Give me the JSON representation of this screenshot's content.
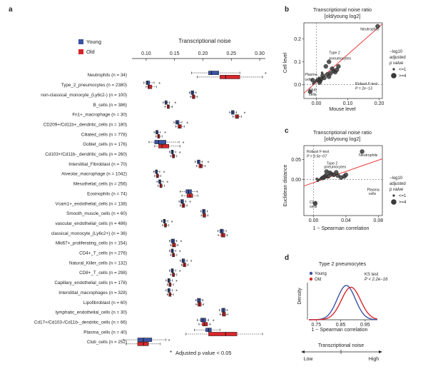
{
  "panel_labels": {
    "a": "a",
    "b": "b",
    "c": "c",
    "d": "d"
  },
  "colors": {
    "young": "#3b52a4",
    "old": "#d7262b",
    "line": "#e8403f",
    "point": "#3a3a3a"
  },
  "chart_data": [
    {
      "id": "a",
      "type": "boxplot",
      "title": "Transcriptional noise",
      "xlim": [
        0.075,
        0.31
      ],
      "xticks": [
        "0.10",
        "0.15",
        "0.20",
        "0.25",
        "0.30"
      ],
      "xtick_values": [
        0.1,
        0.15,
        0.2,
        0.25,
        0.3
      ],
      "legend": [
        {
          "key": "young",
          "label": "Young"
        },
        {
          "key": "old",
          "label": "Old"
        }
      ],
      "footnote": "Adjusted p value < 0.05",
      "footnote_star": "*",
      "rows": [
        {
          "label": "Neutrophils (n = 34)",
          "sig": true,
          "young": [
            0.18,
            0.21,
            0.215,
            0.228,
            0.265
          ],
          "old": [
            0.19,
            0.23,
            0.24,
            0.265,
            0.305
          ]
        },
        {
          "label": "Type_2_pneumocytes (n = 2380)",
          "sig": true,
          "young": [
            0.096,
            0.1,
            0.102,
            0.106,
            0.114
          ],
          "old": [
            0.1,
            0.103,
            0.105,
            0.11,
            0.118
          ]
        },
        {
          "label": "non-classical_monocyte_(Ly6c2-) (n = 100)",
          "sig": false,
          "young": [
            0.176,
            0.179,
            0.181,
            0.184,
            0.188
          ],
          "old": [
            0.178,
            0.181,
            0.184,
            0.186,
            0.19
          ]
        },
        {
          "label": "B_cells (n = 386)",
          "sig": true,
          "young": [
            0.13,
            0.133,
            0.135,
            0.137,
            0.141
          ],
          "old": [
            0.133,
            0.137,
            0.139,
            0.141,
            0.146
          ]
        },
        {
          "label": "Fn1+_macrophage (n = 30)",
          "sig": true,
          "young": [
            0.247,
            0.25,
            0.253,
            0.255,
            0.259
          ],
          "old": [
            0.253,
            0.257,
            0.26,
            0.263,
            0.268
          ]
        },
        {
          "label": "CD209+/Cd11b+_dendritic_cells (n = 180)",
          "sig": true,
          "young": [
            0.149,
            0.152,
            0.155,
            0.158,
            0.163
          ],
          "old": [
            0.152,
            0.156,
            0.159,
            0.162,
            0.167
          ]
        },
        {
          "label": "Ciliated_cells (n = 778)",
          "sig": true,
          "young": [
            0.114,
            0.117,
            0.119,
            0.121,
            0.125
          ],
          "old": [
            0.117,
            0.12,
            0.122,
            0.124,
            0.128
          ]
        },
        {
          "label": "Goblet_cells (n = 176)",
          "sig": true,
          "young": [
            0.105,
            0.115,
            0.122,
            0.135,
            0.158
          ],
          "old": [
            0.115,
            0.122,
            0.128,
            0.14,
            0.16
          ]
        },
        {
          "label": "Cd103+/Cd11b-_dendritic_cells (n = 260)",
          "sig": true,
          "young": [
            0.141,
            0.144,
            0.146,
            0.148,
            0.152
          ],
          "old": [
            0.143,
            0.146,
            0.148,
            0.15,
            0.154
          ]
        },
        {
          "label": "Interstitial_Fibroblast (n = 70)",
          "sig": true,
          "young": [
            0.186,
            0.19,
            0.192,
            0.195,
            0.199
          ],
          "old": [
            0.189,
            0.193,
            0.196,
            0.199,
            0.204
          ]
        },
        {
          "label": "Alveolar_macrophage (n = 1042)",
          "sig": true,
          "young": [
            0.113,
            0.116,
            0.118,
            0.12,
            0.124
          ],
          "old": [
            0.115,
            0.118,
            0.12,
            0.122,
            0.126
          ]
        },
        {
          "label": "Mesothelial_cells (n = 256)",
          "sig": true,
          "young": [
            0.119,
            0.122,
            0.124,
            0.126,
            0.13
          ],
          "old": [
            0.121,
            0.124,
            0.126,
            0.128,
            0.132
          ]
        },
        {
          "label": "Eosinophils (n = 74)",
          "sig": false,
          "young": [
            0.16,
            0.17,
            0.175,
            0.18,
            0.19
          ],
          "old": [
            0.163,
            0.172,
            0.177,
            0.182,
            0.191
          ]
        },
        {
          "label": "Vcam1+_endothelial_cells (n = 138)",
          "sig": true,
          "young": [
            0.158,
            0.161,
            0.163,
            0.166,
            0.17
          ],
          "old": [
            0.16,
            0.163,
            0.166,
            0.168,
            0.172
          ]
        },
        {
          "label": "Smooth_muscle_cells (n = 60)",
          "sig": false,
          "young": [
            0.196,
            0.199,
            0.201,
            0.204,
            0.208
          ],
          "old": [
            0.197,
            0.2,
            0.202,
            0.205,
            0.209
          ]
        },
        {
          "label": "vascular_endothelial_cells (n = 486)",
          "sig": true,
          "young": [
            0.127,
            0.13,
            0.132,
            0.134,
            0.138
          ],
          "old": [
            0.129,
            0.132,
            0.134,
            0.136,
            0.14
          ]
        },
        {
          "label": "classical_monocyte_(Ly6c2+) (n = 36)",
          "sig": false,
          "young": [
            0.226,
            0.23,
            0.233,
            0.236,
            0.241
          ],
          "old": [
            0.227,
            0.232,
            0.235,
            0.239,
            0.243
          ]
        },
        {
          "label": "Mki67+_proliferating_cells (n = 154)",
          "sig": true,
          "young": [
            0.141,
            0.144,
            0.147,
            0.15,
            0.154
          ],
          "old": [
            0.143,
            0.146,
            0.149,
            0.152,
            0.156
          ]
        },
        {
          "label": "CD4+_T_cells (n = 276)",
          "sig": true,
          "young": [
            0.141,
            0.144,
            0.146,
            0.148,
            0.152
          ],
          "old": [
            0.143,
            0.146,
            0.148,
            0.15,
            0.154
          ]
        },
        {
          "label": "Natural_Killer_cells (n = 132)",
          "sig": true,
          "young": [
            0.16,
            0.163,
            0.165,
            0.168,
            0.172
          ],
          "old": [
            0.162,
            0.165,
            0.167,
            0.17,
            0.174
          ]
        },
        {
          "label": "CD8+_T_cells (n = 298)",
          "sig": true,
          "young": [
            0.141,
            0.144,
            0.146,
            0.148,
            0.152
          ],
          "old": [
            0.143,
            0.146,
            0.148,
            0.15,
            0.154
          ]
        },
        {
          "label": "Capillary_endothelial_cells (n = 178)",
          "sig": true,
          "young": [
            0.135,
            0.138,
            0.14,
            0.142,
            0.146
          ],
          "old": [
            0.137,
            0.14,
            0.142,
            0.144,
            0.148
          ]
        },
        {
          "label": "Interstitial_macrophages (n = 328)",
          "sig": true,
          "young": [
            0.135,
            0.138,
            0.14,
            0.142,
            0.146
          ],
          "old": [
            0.137,
            0.14,
            0.142,
            0.144,
            0.148
          ]
        },
        {
          "label": "Lipofibroblast (n = 60)",
          "sig": false,
          "young": [
            0.187,
            0.19,
            0.193,
            0.196,
            0.2
          ],
          "old": [
            0.188,
            0.191,
            0.194,
            0.197,
            0.201
          ]
        },
        {
          "label": "lymphatic_endothelial_cells (n = 30)",
          "sig": false,
          "young": [
            0.229,
            0.233,
            0.236,
            0.239,
            0.243
          ],
          "old": [
            0.23,
            0.234,
            0.237,
            0.24,
            0.244
          ]
        },
        {
          "label": "Cd17+/Cd103-/Cd11b-_dendritic_cells (n = 66)",
          "sig": true,
          "young": [
            0.19,
            0.196,
            0.2,
            0.205,
            0.21
          ],
          "old": [
            0.193,
            0.199,
            0.203,
            0.208,
            0.213
          ]
        },
        {
          "label": "Plasma_cells (n = 40)",
          "sig": false,
          "young": [
            0.185,
            0.205,
            0.21,
            0.215,
            0.23
          ],
          "old": [
            0.17,
            0.21,
            0.24,
            0.26,
            0.305
          ]
        },
        {
          "label": "Club_cells (n = 252)",
          "sig": true,
          "young": [
            0.06,
            0.085,
            0.095,
            0.11,
            0.135
          ],
          "old": [
            0.065,
            0.085,
            0.095,
            0.104,
            0.125
          ]
        }
      ]
    },
    {
      "id": "b",
      "type": "scatter",
      "title": "Transcriptional noise ratio",
      "subtitle": "[old/young log2]",
      "xlabel": "Mouse level",
      "ylabel": "Cell level",
      "xlim": [
        -0.04,
        0.21
      ],
      "ylim": [
        -0.06,
        0.27
      ],
      "xticks": [
        "0.00",
        "0.10",
        "0.20"
      ],
      "xtick_values": [
        0.0,
        0.1,
        0.2
      ],
      "yticks": [
        "0.0",
        "0.1",
        "0.2"
      ],
      "ytick_values": [
        0.0,
        0.1,
        0.2
      ],
      "annotations": [
        {
          "text": "Neutrophils",
          "x": 0.14,
          "y": 0.237
        },
        {
          "text": "Type 2",
          "x": 0.04,
          "y": 0.135
        },
        {
          "text": "pneumocytes",
          "x": 0.04,
          "y": 0.11
        },
        {
          "text": "Plasma",
          "x": -0.037,
          "y": 0.04
        },
        {
          "text": "cells",
          "x": -0.037,
          "y": 0.018
        },
        {
          "text": "Club",
          "x": -0.024,
          "y": -0.028
        },
        {
          "text": "cells",
          "x": -0.024,
          "y": -0.048
        }
      ],
      "stat_text": [
        "Robust F-test",
        "P = 2e−13"
      ],
      "legend_title": [
        "−log10",
        "adjusted",
        "p value"
      ],
      "legend_items": [
        "<=1",
        ">=4"
      ],
      "fit": {
        "x": [
          -0.04,
          0.21
        ],
        "y": [
          -0.037,
          0.265
        ]
      },
      "points": [
        {
          "x": 0.195,
          "y": 0.255,
          "s": 2
        },
        {
          "x": 0.04,
          "y": 0.1,
          "s": 2
        },
        {
          "x": 0.03,
          "y": 0.08,
          "s": 2
        },
        {
          "x": 0.05,
          "y": 0.07,
          "s": 2
        },
        {
          "x": 0.055,
          "y": 0.06,
          "s": 2
        },
        {
          "x": 0.06,
          "y": 0.055,
          "s": 2
        },
        {
          "x": 0.065,
          "y": 0.065,
          "s": 2
        },
        {
          "x": 0.045,
          "y": 0.05,
          "s": 2
        },
        {
          "x": 0.035,
          "y": 0.045,
          "s": 2
        },
        {
          "x": 0.04,
          "y": 0.035,
          "s": 2
        },
        {
          "x": 0.025,
          "y": 0.03,
          "s": 2
        },
        {
          "x": 0.02,
          "y": 0.04,
          "s": 2
        },
        {
          "x": 0.015,
          "y": 0.025,
          "s": 2
        },
        {
          "x": 0.012,
          "y": 0.018,
          "s": 2
        },
        {
          "x": 0.01,
          "y": 0.01,
          "s": 2
        },
        {
          "x": 0.005,
          "y": 0.02,
          "s": 2
        },
        {
          "x": 0.008,
          "y": 0.03,
          "s": 1
        },
        {
          "x": 0.0,
          "y": 0.02,
          "s": 1
        },
        {
          "x": -0.005,
          "y": 0.012,
          "s": 1
        },
        {
          "x": 0.018,
          "y": 0.052,
          "s": 1
        },
        {
          "x": 0.07,
          "y": 0.08,
          "s": 2
        },
        {
          "x": -0.01,
          "y": 0.005,
          "s": 1
        },
        {
          "x": -0.012,
          "y": 0.02,
          "s": 2
        },
        {
          "x": -0.02,
          "y": -0.03,
          "s": 2
        }
      ]
    },
    {
      "id": "c",
      "type": "scatter",
      "title": "Transcriptional noise ratio",
      "subtitle": "[old/young log2]",
      "xlabel": "1 − Spearman correlation",
      "ylabel": "Euclidean distance",
      "xlim": [
        -0.012,
        0.085
      ],
      "ylim": [
        -0.09,
        0.085
      ],
      "xticks": [
        "0.00",
        "0.04",
        "0.08"
      ],
      "xtick_values": [
        0.0,
        0.04,
        0.08
      ],
      "yticks": [
        "0.00",
        "0.05"
      ],
      "ytick_values": [
        0.0,
        0.05
      ],
      "annotations": [
        {
          "text": "Neutrophils",
          "x": 0.056,
          "y": 0.058
        },
        {
          "text": "Type 2",
          "x": 0.016,
          "y": 0.038
        },
        {
          "text": "pneumocytes",
          "x": 0.013,
          "y": 0.029
        },
        {
          "text": "Plasma",
          "x": 0.066,
          "y": -0.028
        },
        {
          "text": "cells",
          "x": 0.068,
          "y": -0.038
        },
        {
          "text": "Club",
          "x": -0.005,
          "y": -0.06
        },
        {
          "text": "cells",
          "x": -0.005,
          "y": -0.07
        }
      ],
      "stat_text": [
        "Robust F-test",
        "P = 9.5e−07"
      ],
      "legend_title": [
        "−log10",
        "adjusted",
        "p value"
      ],
      "legend_items": [
        "<=1",
        ">=4"
      ],
      "fit": {
        "x": [
          -0.012,
          0.085
        ],
        "y": [
          -0.016,
          0.052
        ]
      },
      "points": [
        {
          "x": 0.06,
          "y": 0.07,
          "s": 2
        },
        {
          "x": 0.038,
          "y": 0.008,
          "s": 2
        },
        {
          "x": 0.034,
          "y": 0.005,
          "s": 2
        },
        {
          "x": 0.03,
          "y": 0.01,
          "s": 2
        },
        {
          "x": 0.025,
          "y": 0.012,
          "s": 2
        },
        {
          "x": 0.022,
          "y": 0.014,
          "s": 2
        },
        {
          "x": 0.02,
          "y": 0.017,
          "s": 2
        },
        {
          "x": 0.018,
          "y": 0.008,
          "s": 2
        },
        {
          "x": 0.015,
          "y": 0.01,
          "s": 2
        },
        {
          "x": 0.013,
          "y": 0.006,
          "s": 2
        },
        {
          "x": 0.011,
          "y": 0.004,
          "s": 2
        },
        {
          "x": 0.009,
          "y": 0.003,
          "s": 1
        },
        {
          "x": 0.007,
          "y": 0.0,
          "s": 1
        },
        {
          "x": 0.005,
          "y": -0.003,
          "s": 1
        },
        {
          "x": 0.004,
          "y": 0.002,
          "s": 1
        },
        {
          "x": 0.016,
          "y": 0.02,
          "s": 2
        },
        {
          "x": 0.028,
          "y": 0.018,
          "s": 2
        },
        {
          "x": 0.04,
          "y": 0.012,
          "s": 2
        },
        {
          "x": 0.002,
          "y": -0.06,
          "s": 2
        }
      ]
    },
    {
      "id": "d",
      "type": "density",
      "title": "Type 2 pneumocytes",
      "xlabel": "1 − Spearman correlation",
      "ylabel": "Density",
      "xlim": [
        0.72,
        1.0
      ],
      "xticks": [
        "0.75",
        "0.85",
        "0.95"
      ],
      "xtick_values": [
        0.75,
        0.85,
        0.95
      ],
      "legend": [
        {
          "key": "young",
          "label": "Young"
        },
        {
          "key": "old",
          "label": "Old"
        }
      ],
      "stat_text": [
        "KS test",
        "P < 2.2e−16"
      ],
      "series": [
        {
          "name": "Young",
          "color_key": "young",
          "mean": 0.873,
          "sd": 0.037,
          "peak": 1.0
        },
        {
          "name": "Old",
          "color_key": "old",
          "mean": 0.892,
          "sd": 0.039,
          "peak": 0.95
        }
      ]
    }
  ],
  "noise_axis": {
    "title": "Transcriptional noise",
    "low": "Low",
    "high": "High"
  }
}
